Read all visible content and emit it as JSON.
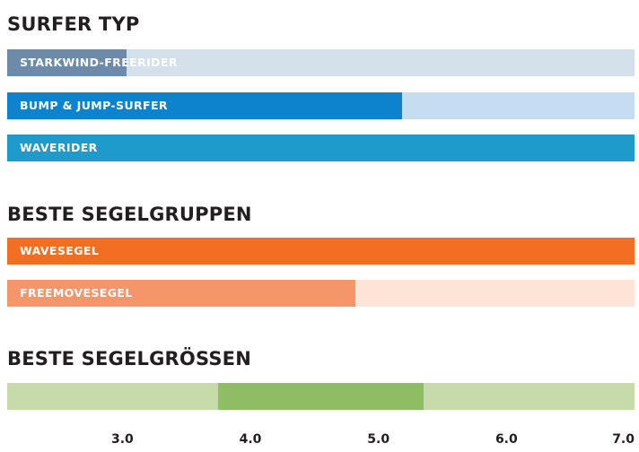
{
  "chart_data": [
    {
      "type": "bar",
      "title": "SURFER TYP",
      "categories": [
        "STARKWIND-FREERIDER",
        "BUMP & JUMP-SURFER",
        "WAVERIDER"
      ],
      "values": [
        0.19,
        0.63,
        1.0
      ],
      "xlim": [
        0,
        1
      ],
      "colors": {
        "fill": [
          "#6c8bab",
          "#0e83cd",
          "#1f9bcb"
        ],
        "track": "#d4e1eb",
        "track_bump": "#c4ddf1"
      }
    },
    {
      "type": "bar",
      "title": "BESTE SEGELGRUPPEN",
      "categories": [
        "WAVESEGEL",
        "FREEMOVESEGEL"
      ],
      "values": [
        1.0,
        0.555
      ],
      "xlim": [
        0,
        1
      ],
      "colors": {
        "fill": [
          "#f26e22",
          "#f5956a"
        ],
        "track": "#fde4d7"
      }
    },
    {
      "type": "bar",
      "title": "BESTE SEGELGRÖSSEN",
      "range": [
        3.75,
        5.35
      ],
      "xlim": [
        2.1,
        7.0
      ],
      "ticks": [
        "3.0",
        "4.0",
        "5.0",
        "6.0",
        "7.0"
      ],
      "tick_values": [
        3.0,
        4.0,
        5.0,
        6.0,
        7.0
      ],
      "colors": {
        "fill": "#8ebd63",
        "track": "#c7dbaa"
      }
    }
  ]
}
